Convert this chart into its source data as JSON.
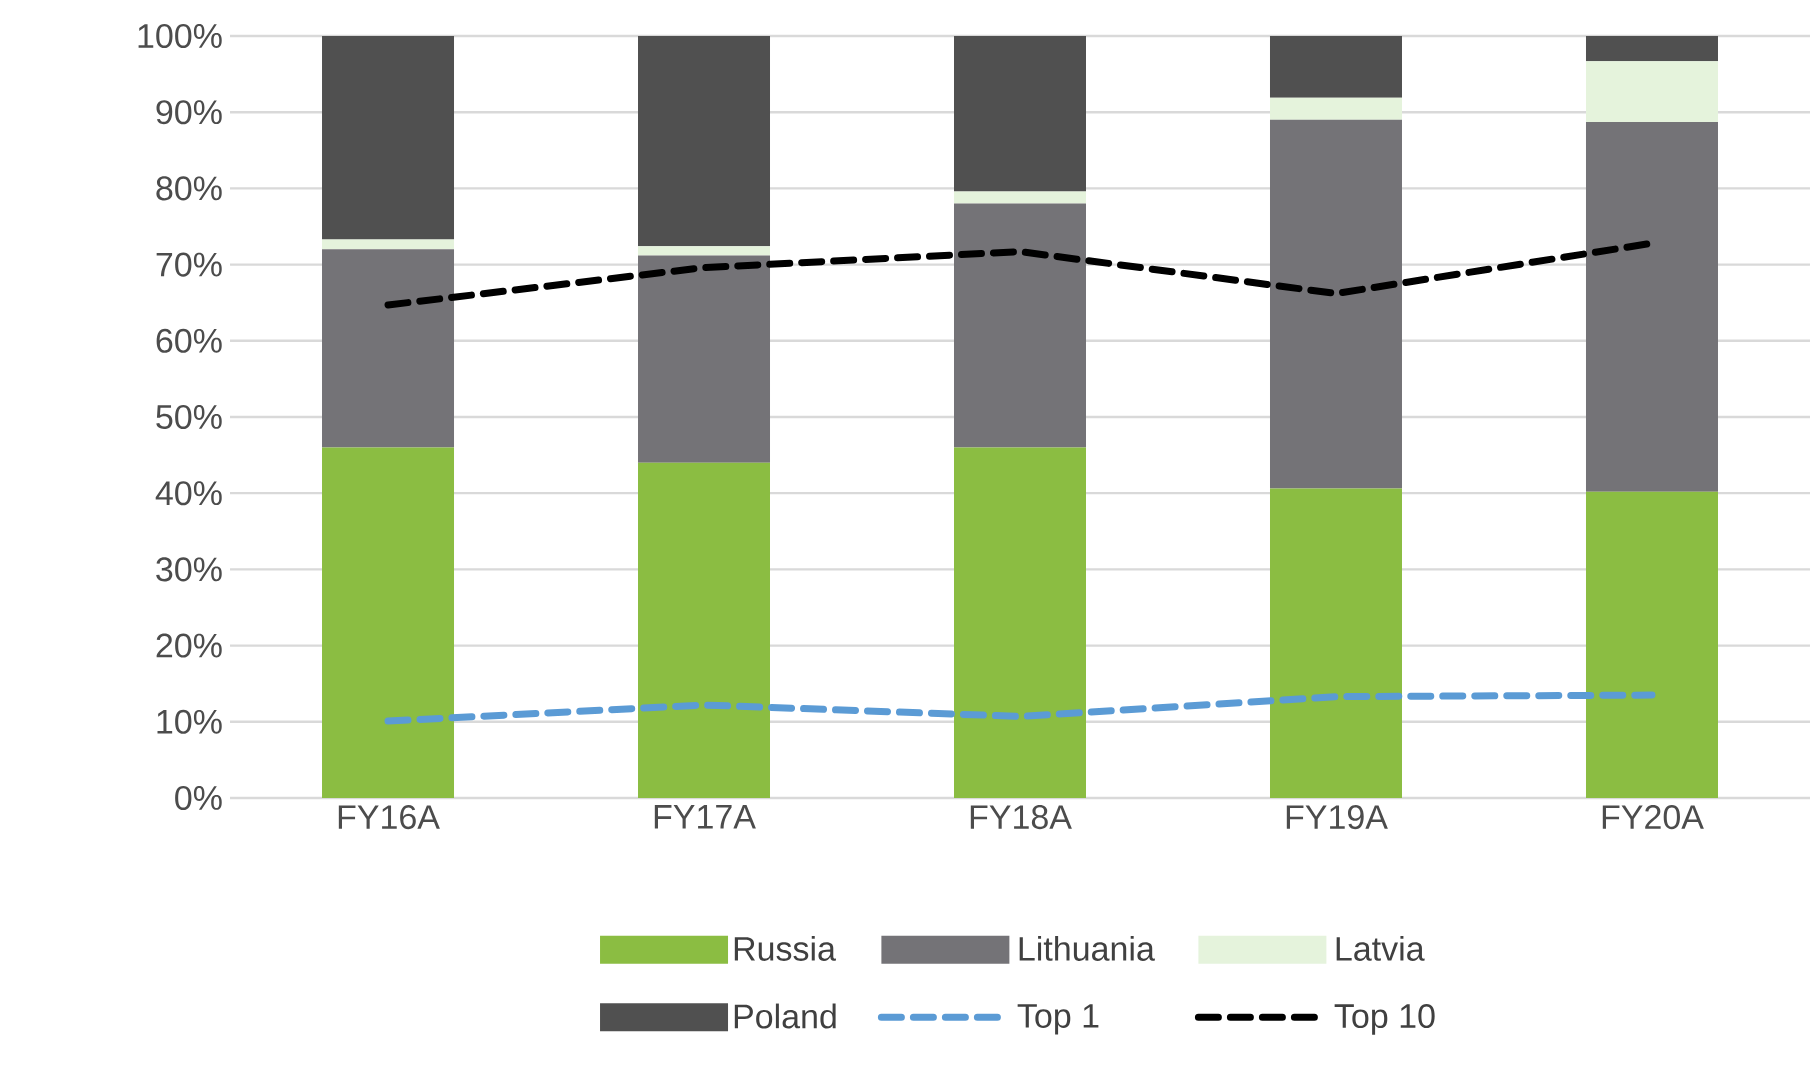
{
  "chart_data": {
    "type": "bar",
    "stacked": true,
    "categories": [
      "FY16A",
      "FY17A",
      "FY18A",
      "FY19A",
      "FY20A"
    ],
    "series": [
      {
        "name": "Russia",
        "color": "#8bbd42",
        "values": [
          46,
          44,
          46,
          40.6,
          40.2
        ]
      },
      {
        "name": "Lithuania",
        "color": "#747377",
        "values": [
          26,
          27.2,
          32,
          48.4,
          48.5
        ]
      },
      {
        "name": "Latvia",
        "color": "#e5f3dc",
        "values": [
          1.3,
          1.2,
          1.6,
          2.9,
          8
        ]
      },
      {
        "name": "Poland",
        "color": "#505050",
        "values": [
          26.7,
          27.6,
          20.4,
          8.1,
          3.3
        ]
      },
      {
        "name": "Top 1",
        "type": "line",
        "line_style": "dashed",
        "color": "#5b9bd5",
        "values": [
          10.1,
          12.2,
          10.7,
          13.3,
          13.5
        ]
      },
      {
        "name": "Top 10",
        "type": "line",
        "line_style": "dashed",
        "color": "#000000",
        "values": [
          64.7,
          69.6,
          71.7,
          66.2,
          72.8
        ]
      }
    ],
    "ylim": [
      0,
      100
    ],
    "yticks": [
      {
        "value": 0,
        "label": "0%"
      },
      {
        "value": 10,
        "label": "10%"
      },
      {
        "value": 20,
        "label": "20%"
      },
      {
        "value": 30,
        "label": "30%"
      },
      {
        "value": 40,
        "label": "40%"
      },
      {
        "value": 50,
        "label": "50%"
      },
      {
        "value": 60,
        "label": "60%"
      },
      {
        "value": 70,
        "label": "70%"
      },
      {
        "value": 80,
        "label": "80%"
      },
      {
        "value": 90,
        "label": "90%"
      },
      {
        "value": 100,
        "label": "100%"
      }
    ],
    "grid": "y",
    "legend": "bottom"
  }
}
